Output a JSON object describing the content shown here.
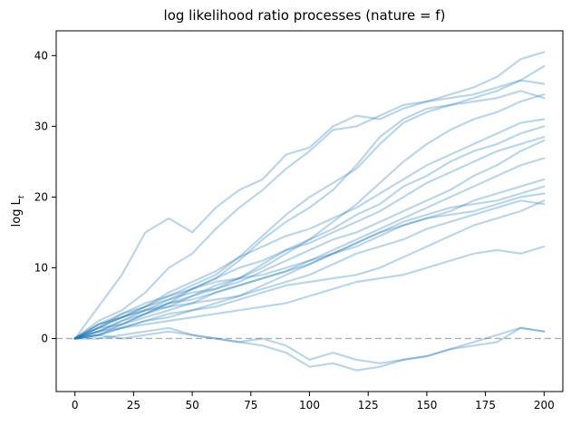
{
  "chart_data": {
    "type": "line",
    "title": "log likelihood ratio processes (nature = f)",
    "xlabel": "",
    "ylabel": "log L",
    "ylabel_subscript": "t",
    "xlim": [
      -8,
      208
    ],
    "ylim": [
      -7.5,
      43.5
    ],
    "xticks": [
      0,
      25,
      50,
      75,
      100,
      125,
      150,
      175,
      200
    ],
    "yticks": [
      0,
      10,
      20,
      30,
      40
    ],
    "grid": false,
    "legend": "none",
    "reference_line": {
      "y": 0,
      "style": "dashed",
      "color": "#b0b0b0"
    },
    "line_color": "#1f77b4",
    "line_alpha": 0.3,
    "x": [
      0,
      10,
      20,
      30,
      40,
      50,
      60,
      70,
      80,
      90,
      100,
      110,
      120,
      130,
      140,
      150,
      160,
      170,
      180,
      190,
      200
    ],
    "series": [
      {
        "values": [
          0,
          4.5,
          9,
          15,
          17,
          15,
          18.5,
          21,
          22.5,
          26,
          27,
          30,
          31.5,
          31,
          32.5,
          33.5,
          34.5,
          35.5,
          37,
          39.5,
          40.5
        ]
      },
      {
        "values": [
          0,
          2.5,
          4,
          6.5,
          10,
          12,
          15.5,
          18.5,
          21,
          24,
          26.5,
          29.5,
          30,
          31.5,
          33,
          33.5,
          34,
          34.5,
          35.5,
          36.5,
          38.5
        ]
      },
      {
        "values": [
          0,
          1.5,
          3.5,
          4.5,
          6,
          7.5,
          9,
          11.5,
          14.5,
          17.5,
          20,
          22,
          24,
          27.5,
          30.5,
          32,
          33,
          34,
          35,
          36.5,
          36
        ]
      },
      {
        "values": [
          0,
          2,
          3,
          4.5,
          5.5,
          7,
          8.5,
          11,
          14,
          16.5,
          18.5,
          21,
          24.5,
          28.5,
          31,
          32.5,
          33,
          33.5,
          34,
          35,
          34
        ]
      },
      {
        "values": [
          0,
          1,
          2.5,
          4,
          5.5,
          6.5,
          7,
          8.5,
          10,
          12,
          14,
          16.5,
          19,
          22,
          25,
          27.5,
          29.5,
          31,
          32,
          33.5,
          34.5
        ]
      },
      {
        "values": [
          0,
          2,
          3,
          4.5,
          6.5,
          8,
          9.5,
          11.5,
          13,
          14.5,
          15.5,
          17,
          18.5,
          20.5,
          22.5,
          24.5,
          26,
          27.5,
          29,
          30.5,
          31
        ]
      },
      {
        "values": [
          0,
          1.5,
          2,
          3.5,
          5,
          6,
          7.5,
          8.5,
          10.5,
          12.5,
          14,
          15.5,
          17.5,
          19,
          21.5,
          23,
          25,
          26.5,
          27.5,
          29,
          30
        ]
      },
      {
        "values": [
          0,
          1,
          2.5,
          3.5,
          5,
          7,
          8.5,
          10,
          11,
          12.5,
          13.5,
          15,
          16.5,
          18,
          20,
          22,
          23.5,
          25,
          26.5,
          27.5,
          28.5
        ]
      },
      {
        "values": [
          0,
          0.5,
          2,
          3.5,
          4.5,
          6,
          7,
          8,
          9.5,
          11,
          12.5,
          14,
          15,
          16.5,
          18,
          19.5,
          21,
          23,
          24.5,
          26.5,
          28
        ]
      },
      {
        "values": [
          0,
          1.5,
          3,
          4,
          5,
          5.5,
          6.5,
          7.5,
          8.5,
          9.5,
          11,
          12.5,
          14,
          15.5,
          17,
          18.5,
          20,
          21.5,
          23,
          24.5,
          25.5
        ]
      },
      {
        "values": [
          0,
          2,
          3.5,
          5,
          6,
          7,
          8,
          8.5,
          9,
          10,
          11,
          12,
          13,
          14.5,
          16,
          17,
          18,
          19.5,
          20.5,
          21.5,
          22.5
        ]
      },
      {
        "values": [
          0,
          1,
          2,
          3,
          4,
          5,
          6.5,
          7.5,
          8.5,
          9.5,
          10.5,
          12,
          13.5,
          15,
          16.5,
          17.5,
          18.5,
          19,
          19.5,
          20.5,
          21.5
        ]
      },
      {
        "values": [
          0,
          0.5,
          1.5,
          2.5,
          3,
          4,
          5,
          6,
          7.5,
          9,
          10.5,
          12,
          13.5,
          15,
          16,
          17,
          17.5,
          18,
          19,
          20,
          20.5
        ]
      },
      {
        "values": [
          0,
          1.5,
          3,
          4,
          4.5,
          5,
          5.5,
          6,
          7,
          8,
          9,
          10.5,
          12,
          13,
          14,
          15.5,
          16.5,
          17.5,
          18.5,
          19.5,
          19
        ]
      },
      {
        "values": [
          0,
          0.5,
          1.5,
          2.5,
          3.5,
          4,
          4.5,
          5.5,
          6.5,
          7.5,
          8,
          8.5,
          9,
          10,
          11.5,
          13,
          14.5,
          16,
          17,
          18,
          19.5
        ]
      },
      {
        "values": [
          0,
          1,
          1.5,
          2,
          2.5,
          3,
          3.5,
          4,
          4.5,
          5,
          6,
          7,
          8,
          8.5,
          9,
          10,
          11,
          12,
          12.5,
          12,
          13
        ]
      },
      {
        "values": [
          0,
          0.5,
          0,
          0.5,
          1,
          0.5,
          0,
          -0.5,
          0,
          -1,
          -3,
          -2,
          -3,
          -3.5,
          -3,
          -2.5,
          -1.5,
          -1,
          -0.5,
          1.5,
          1
        ]
      },
      {
        "values": [
          0,
          0,
          0.5,
          1,
          1.5,
          0.5,
          0,
          -0.5,
          -1,
          -2,
          -4,
          -3.5,
          -4.5,
          -4,
          -3,
          -2.5,
          -1.5,
          -0.5,
          0.5,
          1.5,
          1
        ]
      }
    ]
  }
}
